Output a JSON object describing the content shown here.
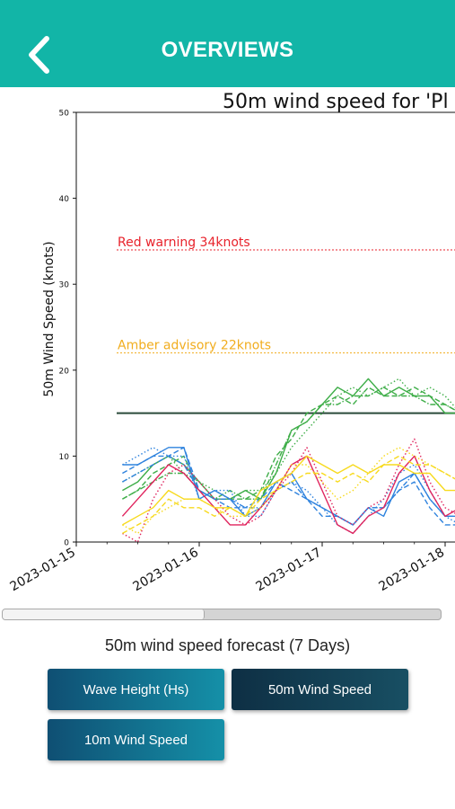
{
  "header": {
    "title": "OVERVIEWS",
    "back_icon": "chevron-left-icon",
    "background": "#12b5a7"
  },
  "chart_data": {
    "type": "line",
    "title": "50m wind speed for 'Pl",
    "ylabel": "50m Wind Speed (knots)",
    "xlabel": "",
    "ylim": [
      0,
      50
    ],
    "yticks": [
      0,
      10,
      20,
      30,
      40,
      50
    ],
    "x_ticks": [
      "2023-01-15",
      "2023-01-16",
      "2023-01-17",
      "2023-01-18"
    ],
    "grid": false,
    "thresholds": [
      {
        "label": "Red warning 34knots",
        "value": 34,
        "color": "#e8222b"
      },
      {
        "label": "Amber advisory 22knots",
        "value": 22,
        "color": "#f1ad1e"
      }
    ],
    "reference_line": {
      "value": 15,
      "color": "#2a4a3a"
    },
    "x": [
      "2023-01-15 09:00",
      "2023-01-15 12:00",
      "2023-01-15 15:00",
      "2023-01-15 18:00",
      "2023-01-15 21:00",
      "2023-01-16 00:00",
      "2023-01-16 03:00",
      "2023-01-16 06:00",
      "2023-01-16 09:00",
      "2023-01-16 12:00",
      "2023-01-16 15:00",
      "2023-01-16 18:00",
      "2023-01-16 21:00",
      "2023-01-17 00:00",
      "2023-01-17 03:00",
      "2023-01-17 06:00",
      "2023-01-17 09:00",
      "2023-01-17 12:00",
      "2023-01-17 15:00",
      "2023-01-17 18:00",
      "2023-01-17 21:00",
      "2023-01-18 00:00",
      "2023-01-18 03:00"
    ],
    "series": [
      {
        "color": "#3fae49",
        "style": "solid",
        "values": [
          6,
          7,
          9,
          10,
          9,
          7,
          5,
          5,
          6,
          5,
          8,
          13,
          14,
          16,
          18,
          17,
          19,
          17,
          18,
          17,
          17,
          15,
          15
        ]
      },
      {
        "color": "#3fae49",
        "style": "dashed",
        "values": [
          5,
          6,
          8,
          9,
          10,
          6,
          5,
          5,
          5,
          6,
          10,
          12,
          15,
          16,
          17,
          16,
          18,
          17,
          17,
          18,
          17,
          16,
          15
        ]
      },
      {
        "color": "#3fae49",
        "style": "dotted",
        "values": [
          7,
          8,
          9,
          10,
          8,
          7,
          6,
          5,
          6,
          6,
          8,
          11,
          13,
          15,
          17,
          18,
          17,
          18,
          19,
          17,
          18,
          17,
          15
        ]
      },
      {
        "color": "#3fae49",
        "style": "dashdot",
        "values": [
          5,
          6,
          7,
          8,
          8,
          6,
          5,
          6,
          5,
          5,
          9,
          13,
          14,
          16,
          16,
          17,
          17,
          18,
          17,
          17,
          16,
          16,
          15
        ]
      },
      {
        "color": "#2f83de",
        "style": "solid",
        "values": [
          9,
          9,
          10,
          11,
          11,
          5,
          6,
          5,
          3,
          4,
          7,
          8,
          5,
          4,
          3,
          2,
          4,
          3,
          7,
          8,
          5,
          3,
          3
        ]
      },
      {
        "color": "#2f83de",
        "style": "dashed",
        "values": [
          8,
          9,
          10,
          10,
          11,
          6,
          5,
          4,
          4,
          5,
          7,
          6,
          5,
          3,
          3,
          2,
          4,
          4,
          6,
          7,
          4,
          2,
          2
        ]
      },
      {
        "color": "#2f83de",
        "style": "dotted",
        "values": [
          9,
          10,
          11,
          10,
          10,
          5,
          6,
          6,
          3,
          3,
          6,
          7,
          6,
          4,
          2,
          1,
          3,
          5,
          8,
          9,
          6,
          3,
          2
        ]
      },
      {
        "color": "#2f83de",
        "style": "dashdot",
        "values": [
          7,
          8,
          9,
          10,
          9,
          6,
          5,
          5,
          4,
          4,
          6,
          7,
          5,
          4,
          3,
          2,
          4,
          4,
          6,
          8,
          5,
          3,
          3
        ]
      },
      {
        "color": "#e0245e",
        "style": "solid",
        "values": [
          3,
          5,
          7,
          9,
          8,
          6,
          4,
          2,
          2,
          4,
          6,
          9,
          10,
          6,
          2,
          1,
          3,
          4,
          8,
          10,
          6,
          3,
          4
        ]
      },
      {
        "color": "#e0245e",
        "style": "dotted",
        "values": [
          1,
          0,
          5,
          8,
          9,
          7,
          5,
          3,
          2,
          3,
          6,
          8,
          11,
          7,
          3,
          2,
          4,
          5,
          9,
          12,
          7,
          4,
          3
        ]
      },
      {
        "color": "#f7da1e",
        "style": "solid",
        "values": [
          2,
          3,
          4,
          6,
          5,
          5,
          4,
          4,
          3,
          6,
          7,
          8,
          10,
          9,
          8,
          9,
          8,
          9,
          9,
          8,
          8,
          6,
          6
        ]
      },
      {
        "color": "#f7da1e",
        "style": "dashed",
        "values": [
          1,
          2,
          3,
          5,
          4,
          4,
          3,
          4,
          3,
          5,
          6,
          7,
          8,
          8,
          7,
          8,
          7,
          9,
          10,
          9,
          9,
          8,
          7
        ]
      },
      {
        "color": "#f7da1e",
        "style": "dotted",
        "values": [
          2,
          1,
          3,
          4,
          5,
          5,
          4,
          3,
          3,
          4,
          6,
          9,
          9,
          7,
          5,
          6,
          8,
          10,
          11,
          10,
          9,
          8,
          7
        ]
      }
    ]
  },
  "scrollbar": {
    "position": 0.46
  },
  "caption": "50m wind speed forecast (7 Days)",
  "buttons": {
    "wave_height": "Wave Height (Hs)",
    "wind_50m": "50m Wind Speed",
    "wind_10m": "10m Wind Speed"
  }
}
